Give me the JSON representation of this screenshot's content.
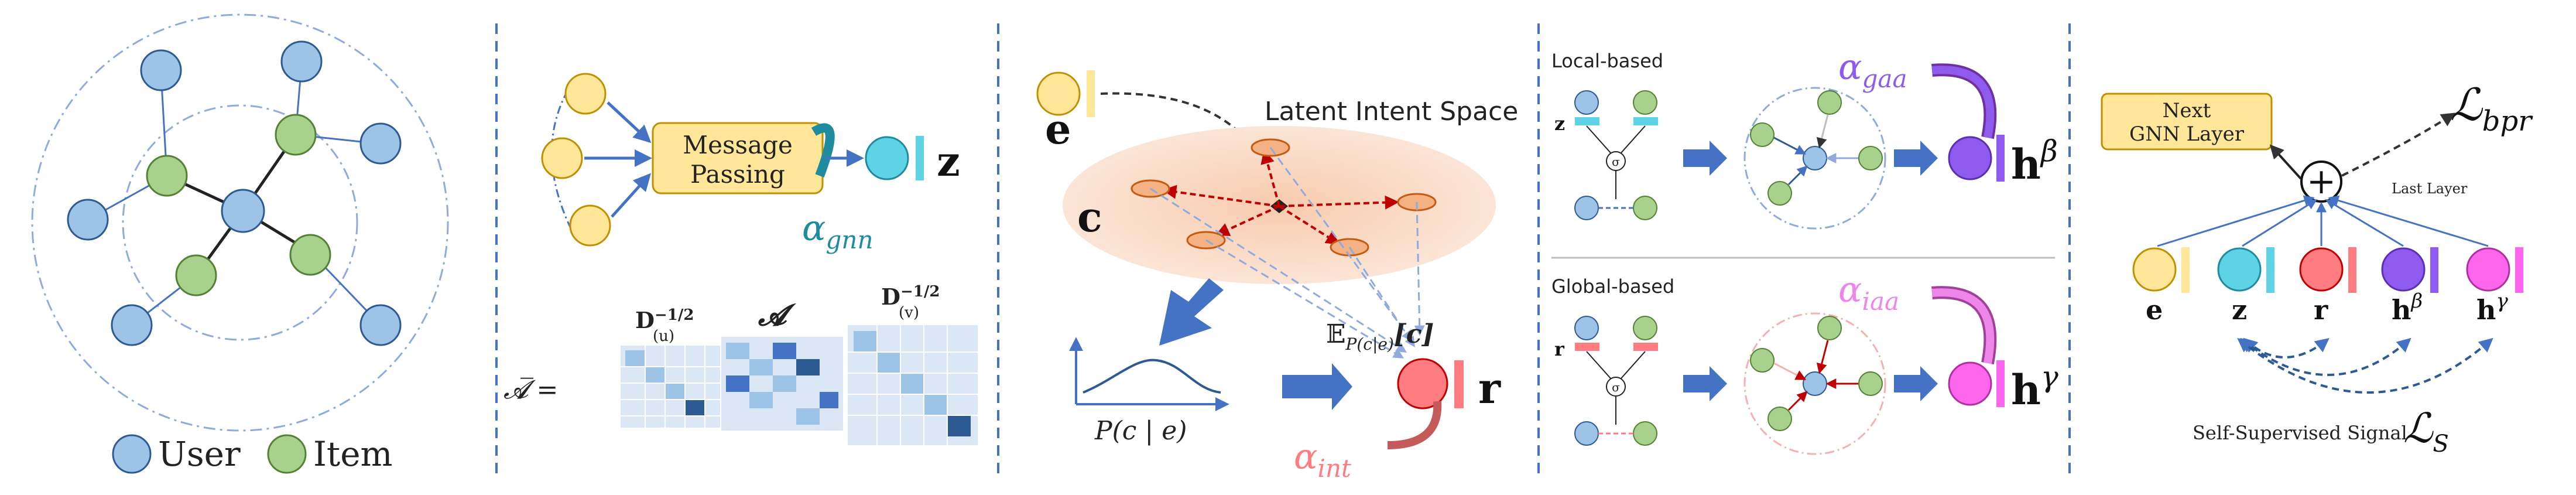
{
  "colors": {
    "user": "#9dc3e6",
    "user_stroke": "#2e5a93",
    "item": "#a9d18e",
    "item_stroke": "#548235",
    "node_yellow": "#ffe699",
    "node_yellow_stroke": "#bf9000",
    "node_cyan": "#5fd3e6",
    "node_red": "#ff7c80",
    "node_purple": "#8f5bef",
    "node_pink": "#ff66ee",
    "arrow_blue": "#4472c4",
    "divider": "#4472c4",
    "latent_bg": "#fbe5d6",
    "intent_node": "#f4b183",
    "dark_red": "#c00000",
    "teal": "#1f8b9e",
    "salmon": "#ff7c80",
    "purple_text": "#8f5bef",
    "pink_text": "#ee86e9"
  },
  "panel1": {
    "legend_user": "User",
    "legend_item": "Item"
  },
  "panel2": {
    "message_passing_line1": "Message",
    "message_passing_line2": "Passing",
    "z_label": "z",
    "alpha_symbol": "α",
    "alpha_sub": "gnn",
    "abar_label": "𝓐̅  =",
    "d_u_label": "D",
    "d_u_sup": "−1/2",
    "d_u_sub": "(u)",
    "a_label": "𝓐",
    "d_v_label": "D",
    "d_v_sup": "−1/2",
    "d_v_sub": "(v)"
  },
  "panel3": {
    "e_label": "e",
    "latent_space_title": "Latent Intent Space",
    "c_label": "c",
    "expectation_label": "𝔼",
    "expectation_sub": "P(c|e)",
    "expectation_arg": "[c]",
    "p_label": "P(c | e)",
    "r_label": "r",
    "alpha_symbol": "α",
    "alpha_sub": "int"
  },
  "panel4": {
    "local_title": "Local-based",
    "global_title": "Global-based",
    "z_label": "z",
    "r_label": "r",
    "sigma": "σ",
    "alpha_gaa_symbol": "α",
    "alpha_gaa_sub": "gaa",
    "alpha_iaa_symbol": "α",
    "alpha_iaa_sub": "iaa",
    "h_beta": "h",
    "h_beta_sup": "β",
    "h_gamma": "h",
    "h_gamma_sup": "γ"
  },
  "panel5": {
    "next_layer_line1": "Next",
    "next_layer_line2": "GNN Layer",
    "plus": "+",
    "l_bpr": "ℒ",
    "l_bpr_sub": "bpr",
    "last_layer": "Last Layer",
    "labels": [
      "e",
      "z",
      "r",
      "h",
      "h"
    ],
    "label_sups": [
      "",
      "",
      "",
      "β",
      "γ"
    ],
    "ssl_text": "Self-Supervised Signal",
    "l_s": "ℒ",
    "l_s_sub": "S"
  }
}
